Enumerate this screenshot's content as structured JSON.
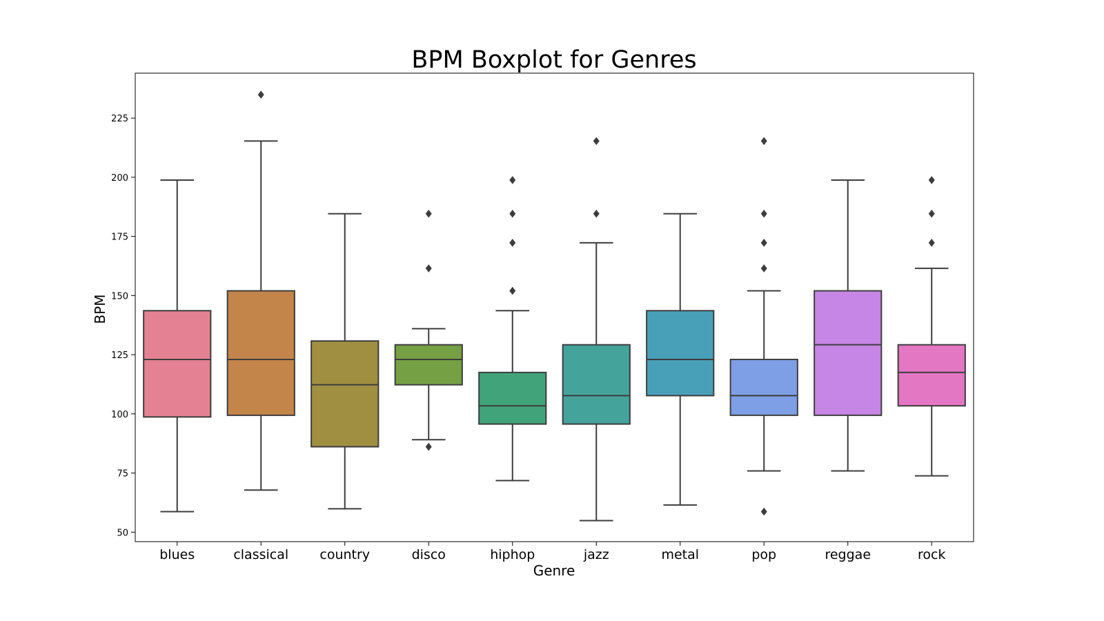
{
  "chart_data": {
    "type": "boxplot",
    "title": "BPM Boxplot for Genres",
    "xlabel": "Genre",
    "ylabel": "BPM",
    "ylim": [
      46,
      244
    ],
    "yticks": [
      50,
      75,
      100,
      125,
      150,
      175,
      200,
      225
    ],
    "grid": false,
    "categories": [
      "blues",
      "classical",
      "country",
      "disco",
      "hiphop",
      "jazz",
      "metal",
      "pop",
      "reggae",
      "rock"
    ],
    "boxes": [
      {
        "category": "blues",
        "whisker_low": 58.7,
        "q1": 98.7,
        "median": 123.0,
        "q3": 143.6,
        "whisker_high": 198.8,
        "outliers": [],
        "color": "#e48193"
      },
      {
        "category": "classical",
        "whisker_low": 67.8,
        "q1": 99.4,
        "median": 123.0,
        "q3": 152.0,
        "whisker_high": 215.3,
        "outliers": [
          234.9
        ],
        "color": "#c4854a"
      },
      {
        "category": "country",
        "whisker_low": 59.9,
        "q1": 86.1,
        "median": 112.3,
        "q3": 130.8,
        "whisker_high": 184.6,
        "outliers": [],
        "color": "#a08f41"
      },
      {
        "category": "disco",
        "whisker_low": 89.1,
        "q1": 112.3,
        "median": 123.0,
        "q3": 129.2,
        "whisker_high": 136.0,
        "outliers": [
          86.1,
          161.5,
          184.6
        ],
        "color": "#76a044"
      },
      {
        "category": "hiphop",
        "whisker_low": 71.8,
        "q1": 95.7,
        "median": 103.4,
        "q3": 117.5,
        "whisker_high": 143.6,
        "outliers": [
          152.0,
          172.3,
          184.6,
          198.8
        ],
        "color": "#41a37a"
      },
      {
        "category": "jazz",
        "whisker_low": 54.9,
        "q1": 95.7,
        "median": 107.7,
        "q3": 129.2,
        "whisker_high": 172.3,
        "outliers": [
          184.6,
          215.3
        ],
        "color": "#44a39b"
      },
      {
        "category": "metal",
        "whisker_low": 61.5,
        "q1": 107.7,
        "median": 123.0,
        "q3": 143.6,
        "whisker_high": 184.6,
        "outliers": [],
        "color": "#48a0b8"
      },
      {
        "category": "pop",
        "whisker_low": 75.9,
        "q1": 99.4,
        "median": 107.7,
        "q3": 123.0,
        "whisker_high": 152.0,
        "outliers": [
          58.7,
          161.5,
          172.3,
          184.6,
          215.3
        ],
        "color": "#7e9fe6"
      },
      {
        "category": "reggae",
        "whisker_low": 75.9,
        "q1": 99.4,
        "median": 129.2,
        "q3": 152.0,
        "whisker_high": 198.8,
        "outliers": [],
        "color": "#c686e6"
      },
      {
        "category": "rock",
        "whisker_low": 73.8,
        "q1": 103.4,
        "median": 117.5,
        "q3": 129.2,
        "whisker_high": 161.5,
        "outliers": [
          172.3,
          184.6,
          198.8
        ],
        "color": "#e477c4"
      }
    ]
  }
}
